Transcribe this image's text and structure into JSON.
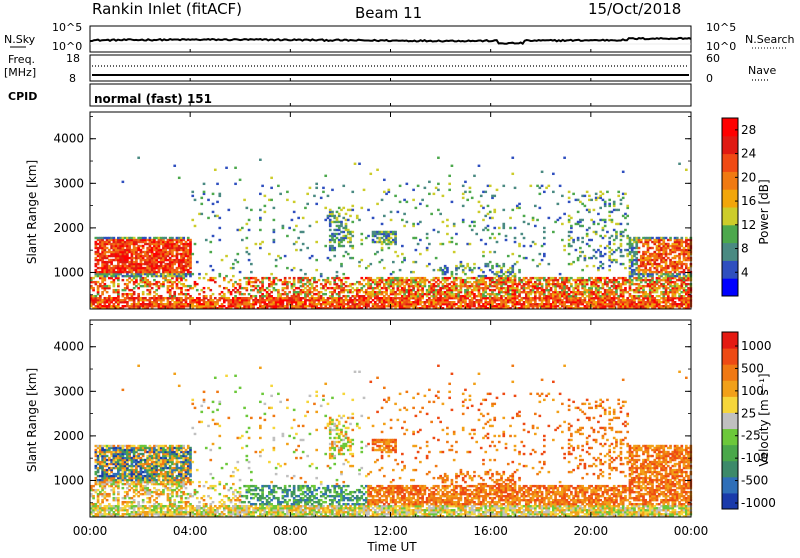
{
  "header": {
    "station": "Rankin Inlet (fitACF)",
    "beam": "Beam 11",
    "date": "15/Oct/2018"
  },
  "top_panels": {
    "nsky_label": "N.Sky",
    "nsky_ticks": [
      "10^5",
      "10^0"
    ],
    "nsearch_label": "N.Search",
    "nsearch_ticks": [
      "10^5",
      "10^0"
    ],
    "freq_label_1": "Freq.",
    "freq_label_2": "[MHz]",
    "freq_ticks": [
      "18",
      "8"
    ],
    "nave_label": "Nave",
    "nave_ticks": [
      "60",
      "0"
    ],
    "cpid_label": "CPID",
    "cpid_value": "normal (fast) 151"
  },
  "chart_data": [
    {
      "type": "heatmap",
      "panel": "power",
      "ylabel": "Slant Range [km]",
      "ylim": [
        180,
        4600
      ],
      "yticks": [
        "1000",
        "2000",
        "3000",
        "4000"
      ],
      "x": [
        "00:00",
        "04:00",
        "08:00",
        "12:00",
        "16:00",
        "20:00",
        "00:00"
      ],
      "colorbar": {
        "label": "Power [dB]",
        "ticks": [
          "4",
          "8",
          "12",
          "16",
          "20",
          "24",
          "28"
        ],
        "colors": [
          "#0000ff",
          "#2f4fbf",
          "#4a8a82",
          "#4ca84c",
          "#cccc2a",
          "#f2a60a",
          "#f07a12",
          "#f04a14",
          "#e01a12",
          "#ff0000"
        ]
      },
      "echo_regions": [
        {
          "t_start": 0.0,
          "t_end": 4.0,
          "r_min": 900,
          "r_max": 1800,
          "level": "high"
        },
        {
          "t_start": 0.0,
          "t_end": 24.0,
          "r_min": 250,
          "r_max": 900,
          "level": "mixed"
        },
        {
          "t_start": 18.0,
          "t_end": 24.0,
          "r_min": 500,
          "r_max": 1800,
          "level": "high"
        }
      ]
    },
    {
      "type": "heatmap",
      "panel": "velocity",
      "ylabel": "Slant Range [km]",
      "ylim": [
        180,
        4600
      ],
      "yticks": [
        "1000",
        "2000",
        "3000",
        "4000"
      ],
      "x": [
        "00:00",
        "04:00",
        "08:00",
        "12:00",
        "16:00",
        "20:00",
        "00:00"
      ],
      "xlabel": "Time UT",
      "colorbar": {
        "label": "Velocity [m s⁻¹]",
        "ticks": [
          "1000",
          "500",
          "100",
          "25",
          "-25",
          "-100",
          "-500",
          "-1000"
        ],
        "colors": [
          "#1a3aaa",
          "#2f6fb8",
          "#3d8a6a",
          "#4aa84a",
          "#6cc83a",
          "#c0c0c0",
          "#f6d63a",
          "#f2a018",
          "#f07812",
          "#ee4a14",
          "#e41a12"
        ]
      },
      "echo_regions": [
        {
          "t_start": 0.0,
          "t_end": 4.0,
          "r_min": 900,
          "r_max": 1800,
          "sign": "mixed"
        },
        {
          "t_start": 6.0,
          "t_end": 11.0,
          "r_min": 250,
          "r_max": 800,
          "sign": "positive"
        },
        {
          "t_start": 11.0,
          "t_end": 24.0,
          "r_min": 300,
          "r_max": 1800,
          "sign": "negative"
        }
      ]
    }
  ]
}
